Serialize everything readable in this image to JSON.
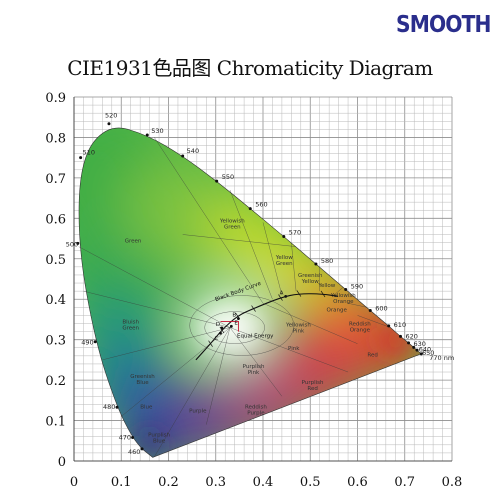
{
  "logo": "SMOOTH",
  "chart_data": {
    "type": "scatter",
    "title": "CIE1931色品图 Chromaticity Diagram",
    "xlim": [
      0,
      0.8
    ],
    "ylim": [
      0,
      0.9
    ],
    "x_ticks": [
      "0",
      "0.1",
      "0.2",
      "0.3",
      "0.4",
      "0.5",
      "0.6",
      "0.7",
      "0.8"
    ],
    "y_ticks": [
      "0",
      "0.1",
      "0.2",
      "0.3",
      "0.4",
      "0.5",
      "0.6",
      "0.7",
      "0.8",
      "0.9"
    ],
    "grid": true,
    "spectral_locus": {
      "labels": [
        "460",
        "470",
        "480",
        "490",
        "500",
        "510",
        "520",
        "530",
        "540",
        "550",
        "560",
        "570",
        "580",
        "590",
        "600",
        "610",
        "620",
        "630",
        "640",
        "650",
        "770 nm"
      ],
      "points": [
        [
          0.144,
          0.03
        ],
        [
          0.124,
          0.058
        ],
        [
          0.091,
          0.133
        ],
        [
          0.045,
          0.295
        ],
        [
          0.008,
          0.538
        ],
        [
          0.014,
          0.75
        ],
        [
          0.074,
          0.834
        ],
        [
          0.155,
          0.806
        ],
        [
          0.23,
          0.754
        ],
        [
          0.302,
          0.692
        ],
        [
          0.373,
          0.624
        ],
        [
          0.444,
          0.555
        ],
        [
          0.512,
          0.487
        ],
        [
          0.575,
          0.424
        ],
        [
          0.627,
          0.372
        ],
        [
          0.666,
          0.334
        ],
        [
          0.691,
          0.308
        ],
        [
          0.708,
          0.292
        ],
        [
          0.719,
          0.281
        ],
        [
          0.726,
          0.274
        ],
        [
          0.735,
          0.265
        ]
      ]
    },
    "blackbody_curve": {
      "label": "Black Body Curve",
      "points": [
        [
          0.258,
          0.25
        ],
        [
          0.289,
          0.29
        ],
        [
          0.313,
          0.324
        ],
        [
          0.346,
          0.359
        ],
        [
          0.38,
          0.377
        ],
        [
          0.437,
          0.404
        ],
        [
          0.476,
          0.414
        ],
        [
          0.527,
          0.413
        ],
        [
          0.559,
          0.407
        ]
      ]
    },
    "illuminants": [
      {
        "label": "A",
        "x": 0.448,
        "y": 0.407
      },
      {
        "label": "B",
        "x": 0.348,
        "y": 0.352
      },
      {
        "label": "C",
        "x": 0.31,
        "y": 0.316
      },
      {
        "label": "D",
        "x": 0.313,
        "y": 0.329
      },
      {
        "label": "E",
        "x": 0.333,
        "y": 0.333
      }
    ],
    "equal_energy_label": "Equal Energy",
    "regions": [
      {
        "name": "Green",
        "x": 0.125,
        "y": 0.54
      },
      {
        "name": "Yellowish Green",
        "x": 0.335,
        "y": 0.59
      },
      {
        "name": "Yellow Green",
        "x": 0.445,
        "y": 0.5
      },
      {
        "name": "Greenish Yellow",
        "x": 0.5,
        "y": 0.455
      },
      {
        "name": "Yellow",
        "x": 0.535,
        "y": 0.43
      },
      {
        "name": "Yellowish Orange",
        "x": 0.57,
        "y": 0.405
      },
      {
        "name": "Orange",
        "x": 0.556,
        "y": 0.37
      },
      {
        "name": "Reddish Orange",
        "x": 0.605,
        "y": 0.335
      },
      {
        "name": "Red",
        "x": 0.632,
        "y": 0.258
      },
      {
        "name": "Yellowish Pink",
        "x": 0.475,
        "y": 0.332
      },
      {
        "name": "Pink",
        "x": 0.465,
        "y": 0.275
      },
      {
        "name": "Purplish Pink",
        "x": 0.38,
        "y": 0.23
      },
      {
        "name": "Purplish Red",
        "x": 0.505,
        "y": 0.19
      },
      {
        "name": "Reddish Purple",
        "x": 0.385,
        "y": 0.13
      },
      {
        "name": "Purple",
        "x": 0.262,
        "y": 0.12
      },
      {
        "name": "Bluish Green",
        "x": 0.12,
        "y": 0.34
      },
      {
        "name": "Greenish Blue",
        "x": 0.145,
        "y": 0.205
      },
      {
        "name": "Blue",
        "x": 0.153,
        "y": 0.13
      },
      {
        "name": "Purplish Blue",
        "x": 0.18,
        "y": 0.06
      }
    ]
  }
}
